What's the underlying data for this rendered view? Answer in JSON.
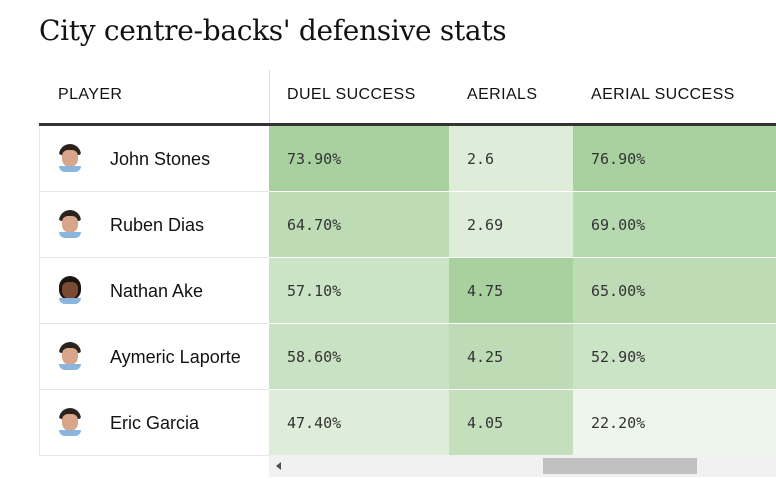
{
  "title": "City centre-backs' defensive stats",
  "columns": {
    "player": "PLAYER",
    "duel_success": "DUEL SUCCESS",
    "aerials": "AERIALS",
    "aerial_success": "AERIAL SUCCESS"
  },
  "rows": [
    {
      "player": "John Stones",
      "duel_success": "73.90%",
      "aerials": "2.6",
      "aerial_success": "76.90%",
      "colors": {
        "duel": "#a9d1a0",
        "aer": "#ddedda",
        "aers": "#a9d1a0"
      }
    },
    {
      "player": "Ruben Dias",
      "duel_success": "64.70%",
      "aerials": "2.69",
      "aerial_success": "69.00%",
      "colors": {
        "duel": "#bddcb5",
        "aer": "#ddedda",
        "aers": "#b7d9af"
      }
    },
    {
      "player": "Nathan Ake",
      "duel_success": "57.10%",
      "aerials": "4.75",
      "aerial_success": "65.00%",
      "colors": {
        "duel": "#cce4c6",
        "aer": "#a9d1a0",
        "aers": "#bddcb5"
      }
    },
    {
      "player": "Aymeric Laporte",
      "duel_success": "58.60%",
      "aerials": "4.25",
      "aerial_success": "52.90%",
      "colors": {
        "duel": "#c9e2c3",
        "aer": "#bddcb5",
        "aers": "#cce4c6"
      }
    },
    {
      "player": "Eric Garcia",
      "duel_success": "47.40%",
      "aerials": "4.05",
      "aerial_success": "22.20%",
      "colors": {
        "duel": "#ddedda",
        "aer": "#c3dfbc",
        "aers": "#eef6ec"
      }
    }
  ],
  "icons": {
    "avatar": "player-headshot-icon",
    "scroll_left": "chevron-left-icon"
  },
  "scroll": {
    "position": 0.54
  }
}
